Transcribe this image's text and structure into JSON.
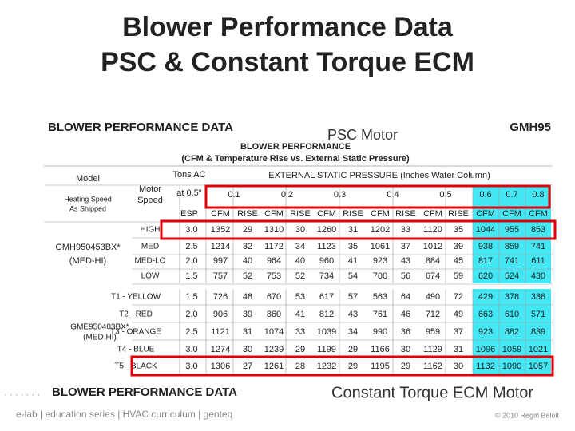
{
  "title": [
    "Blower Performance Data",
    "PSC & Constant Torque ECM"
  ],
  "table1": {
    "heading": "BLOWER PERFORMANCE DATA",
    "model_family": "GMH95",
    "subheading": "BLOWER PERFORMANCE",
    "subtitle": "(CFM & Temperature Rise vs. External Static Pressure)",
    "col_model": "Model",
    "col_heating": [
      "Heating Speed",
      "As Shipped"
    ],
    "col_motor": [
      "Motor",
      "Speed"
    ],
    "col_tons": [
      "Tons AC",
      "at 0.5\""
    ],
    "col_esp_group": "EXTERNAL  STATIC  PRESSURE  (Inches Water Column)",
    "pressures": [
      "0.1",
      "0.2",
      "0.3",
      "0.4",
      "0.5",
      "0.6",
      "0.7",
      "0.8"
    ],
    "esp": "ESP",
    "cfm": "CFM",
    "rise": "RISE",
    "model": "GMH950453BX*",
    "model_speed": "(MED-HI)",
    "rows": [
      {
        "speed": "HIGH",
        "tons": "3.0",
        "cells": [
          1352,
          29,
          1310,
          30,
          1260,
          31,
          1202,
          33,
          1120,
          35,
          1044,
          955,
          853
        ]
      },
      {
        "speed": "MED",
        "tons": "2.5",
        "cells": [
          1214,
          32,
          1172,
          34,
          1123,
          35,
          1061,
          37,
          1012,
          39,
          938,
          859,
          741
        ]
      },
      {
        "speed": "MED-LO",
        "tons": "2.0",
        "cells": [
          997,
          40,
          964,
          40,
          960,
          41,
          923,
          43,
          884,
          45,
          817,
          741,
          611
        ]
      },
      {
        "speed": "LOW",
        "tons": "1.5",
        "cells": [
          757,
          52,
          753,
          52,
          734,
          54,
          700,
          56,
          674,
          59,
          620,
          524,
          430
        ]
      }
    ]
  },
  "table2": {
    "model": "GME950403BX*",
    "model_speed": "(MED HI)",
    "rows": [
      {
        "speed": "T1 - YELLOW",
        "tons": "1.5",
        "cells": [
          726,
          48,
          670,
          53,
          617,
          57,
          563,
          64,
          490,
          72,
          429,
          378,
          336
        ]
      },
      {
        "speed": "T2 - RED",
        "tons": "2.0",
        "cells": [
          906,
          39,
          860,
          41,
          812,
          43,
          761,
          46,
          712,
          49,
          663,
          610,
          571
        ]
      },
      {
        "speed": "T3 - ORANGE",
        "tons": "2.5",
        "cells": [
          1121,
          31,
          1074,
          33,
          1039,
          34,
          990,
          36,
          959,
          37,
          923,
          882,
          839
        ]
      },
      {
        "speed": "T4 - BLUE",
        "tons": "3.0",
        "cells": [
          1274,
          30,
          1239,
          29,
          1199,
          29,
          1166,
          30,
          1129,
          31,
          1096,
          1059,
          1021
        ]
      },
      {
        "speed": "T5 - BLACK",
        "tons": "3.0",
        "cells": [
          1306,
          27,
          1261,
          28,
          1232,
          29,
          1195,
          29,
          1162,
          30,
          1132,
          1090,
          1057
        ]
      }
    ]
  },
  "label_psc": "PSC Motor",
  "heading2": "BLOWER PERFORMANCE DATA",
  "label_ecm": "Constant Torque ECM Motor",
  "footer": "e-lab  |  education series  |  HVAC curriculum  |  genteq",
  "copyright": "© 2010 Regal Beloit"
}
